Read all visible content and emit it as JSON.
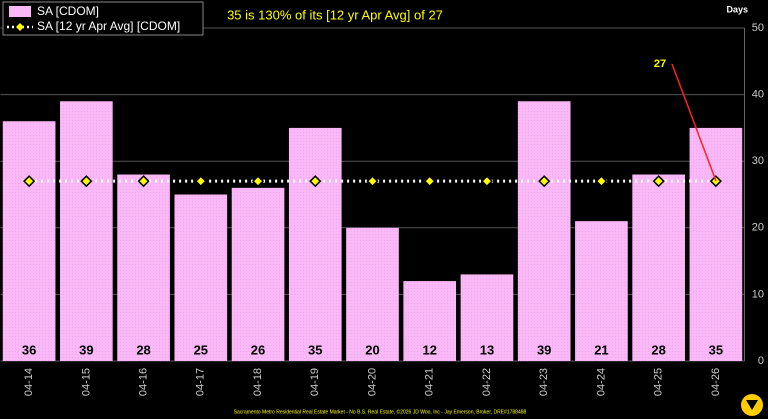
{
  "chart_data": {
    "type": "bar",
    "title": "35 is 130% of its [12 yr Apr Avg] of 27",
    "y_label": "Days",
    "annotation": "27",
    "footer": "Sacramento Metro Residential Real Estate Market - No B.S. Real Estate, ©2026 JD Woo, Inc - Jay Emerson, Broker, DRE#1788488",
    "categories": [
      "04-14",
      "04-15",
      "04-16",
      "04-17",
      "04-18",
      "04-19",
      "04-20",
      "04-21",
      "04-22",
      "04-23",
      "04-24",
      "04-25",
      "04-26"
    ],
    "series": [
      {
        "name": "SA [CDOM]",
        "color": "#f9b9f7",
        "values": [
          36,
          39,
          28,
          25,
          26,
          35,
          20,
          12,
          13,
          39,
          21,
          28,
          35
        ]
      },
      {
        "name": "SA [12 yr Apr Avg] [CDOM]",
        "color": "#ffff00",
        "type": "line",
        "values": [
          27,
          27,
          27,
          27,
          27,
          27,
          27,
          27,
          27,
          27,
          27,
          27,
          27
        ]
      }
    ],
    "ylim": [
      0,
      50
    ],
    "yticks": [
      0,
      10,
      20,
      30,
      40,
      50
    ],
    "grid": true
  }
}
